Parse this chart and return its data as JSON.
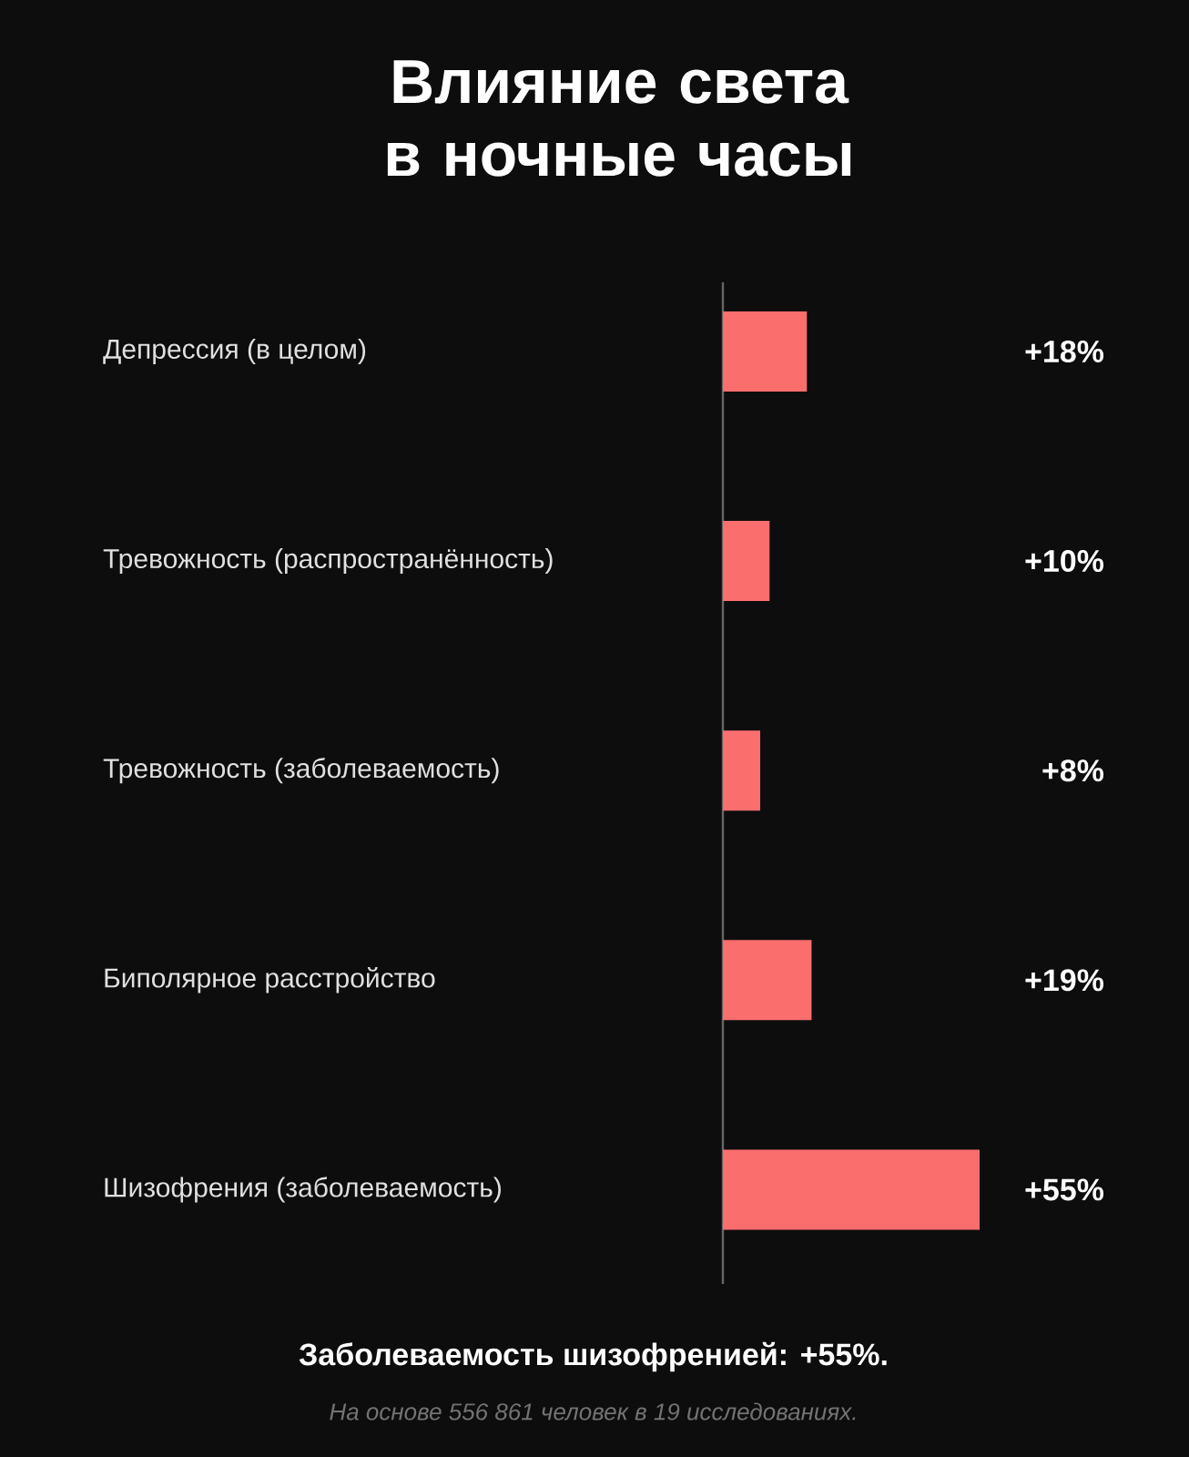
{
  "chart_data": {
    "type": "bar",
    "orientation": "horizontal",
    "title": "Влияние света в ночные часы",
    "categories": [
      "Депрессия (в целом)",
      "Тревожность (распространённость)",
      "Тревожность (заболеваемость)",
      "Биполярное расстройство",
      "Шизофрения (заболеваемость)"
    ],
    "values": [
      18,
      10,
      8,
      19,
      55
    ],
    "value_labels": [
      "+18%",
      "+10%",
      "+8%",
      "+19%",
      "+55%"
    ],
    "color": "#fa6e6e",
    "annotations": [
      "Заболеваемость шизофренией: +55%.",
      "На основе 556 861 человек  в 19 исследованиях."
    ]
  }
}
